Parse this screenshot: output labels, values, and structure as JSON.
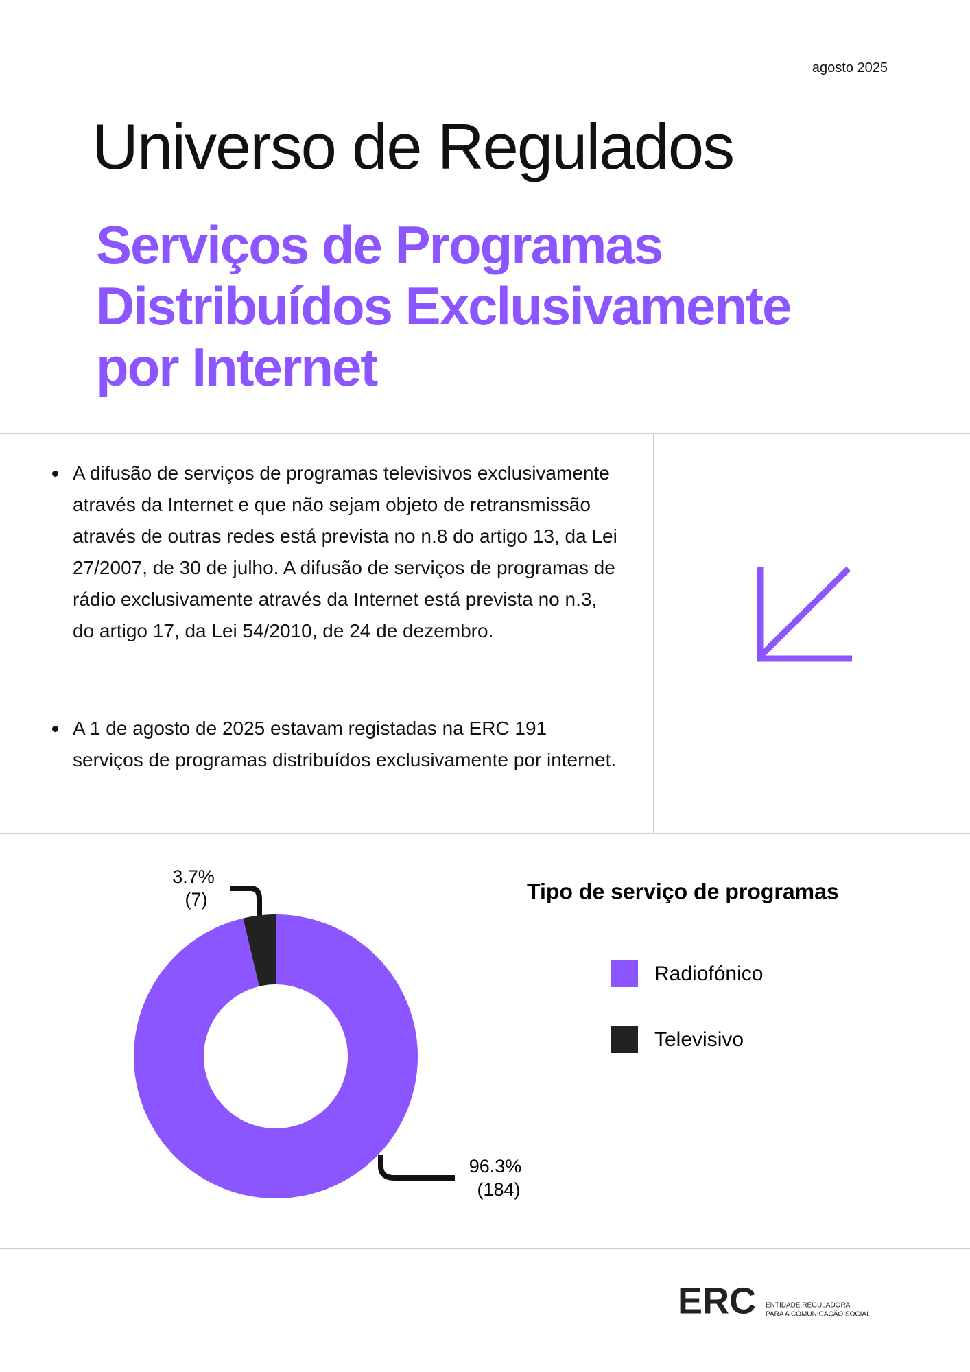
{
  "header": {
    "date": "agosto 2025",
    "title": "Universo de Regulados",
    "subtitle_lines": [
      "Serviços de Programas",
      "Distribuídos Exclusivamente",
      "por Internet"
    ]
  },
  "bullets": [
    "A difusão de serviços de programas televisivos exclusivamente através da Internet e que não sejam objeto de retransmissão através de outras redes está prevista no n.8 do artigo 13, da Lei 27/2007, de 30 de julho. A difusão de serviços de programas de rádio exclusivamente através da Internet está prevista no n.3, do artigo 17, da Lei 54/2010, de 24 de dezembro.",
    "A 1 de agosto de 2025 estavam registadas na ERC 191 serviços de programas distribuídos exclusivamente por internet."
  ],
  "chart_data": {
    "type": "pie",
    "title": "Tipo de serviço de programas",
    "categories": [
      "Radiofónico",
      "Televisivo"
    ],
    "values": [
      96.3,
      3.7
    ],
    "value_labels": [
      "96.3%",
      "3.7%"
    ],
    "counts": [
      184,
      7
    ],
    "count_labels": [
      "(184)",
      "(7)"
    ],
    "colors": [
      "#8b55ff",
      "#222222"
    ],
    "donut": true
  },
  "footer": {
    "logo": "ERC",
    "tagline_lines": [
      "ENTIDADE REGULADORA",
      "PARA A COMUNICAÇÃO SOCIAL"
    ]
  }
}
